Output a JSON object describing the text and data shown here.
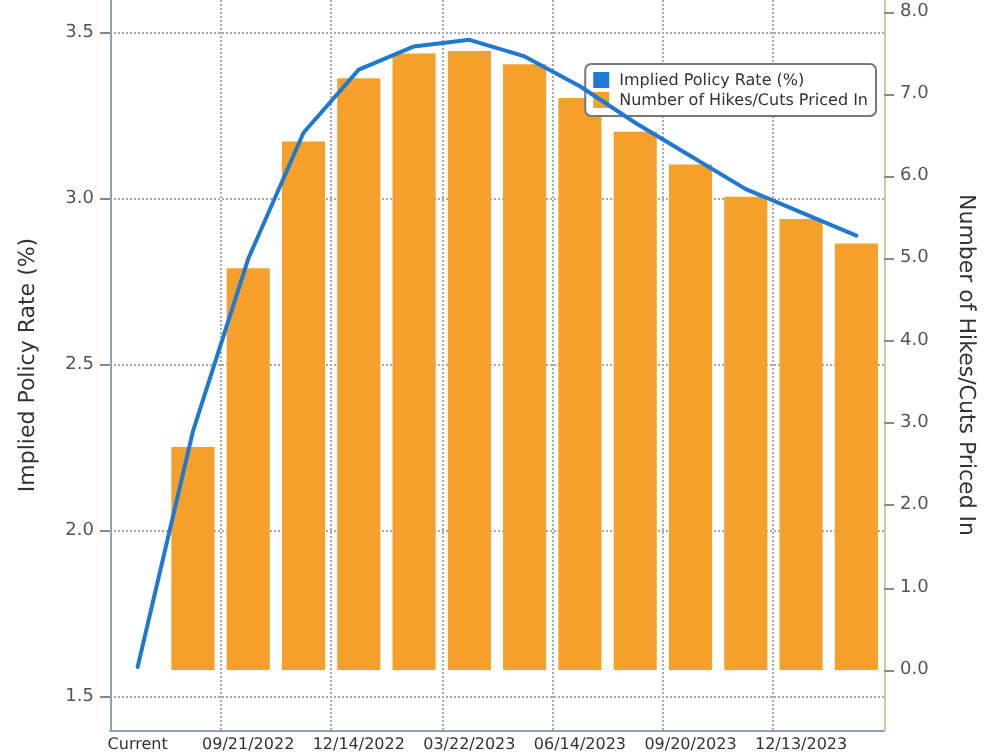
{
  "chart_data": {
    "type": "bar",
    "categories": [
      "Current",
      null,
      "09/21/2022",
      null,
      "12/14/2022",
      null,
      "03/22/2023",
      null,
      "06/14/2023",
      null,
      "09/20/2023",
      null,
      "12/13/2023",
      null
    ],
    "ylabel": "Implied Policy Rate (%)",
    "y2label": "Number of Hikes/Cuts Priced In",
    "series": [
      {
        "name": "Implied Policy Rate (%)",
        "type": "line",
        "color": "#1f78d1",
        "values": [
          1.59,
          2.3,
          2.82,
          3.2,
          3.39,
          3.46,
          3.48,
          3.43,
          3.34,
          3.23,
          3.13,
          3.03,
          2.96,
          2.89
        ]
      },
      {
        "name": "Number of Hikes/Cuts Priced In",
        "axis": "y2",
        "color": "#f5a02a",
        "values": [
          0,
          2.71,
          4.88,
          6.42,
          7.19,
          7.49,
          7.52,
          7.36,
          6.95,
          6.54,
          6.14,
          5.75,
          5.48,
          5.18
        ]
      }
    ],
    "ylim": [
      1.4,
      3.6
    ],
    "yticks": [
      {
        "value": 1.5,
        "label": "1.5"
      },
      {
        "value": 2,
        "label": "2.0"
      },
      {
        "value": 2.5,
        "label": "2.5"
      },
      {
        "value": 3,
        "label": "3.0"
      },
      {
        "value": 3.5,
        "label": "3.5"
      }
    ],
    "y2lim": [
      -0.73,
      8.14
    ],
    "y2ticks": [
      {
        "value": 0,
        "label": "0.0"
      },
      {
        "value": 1,
        "label": "1.0"
      },
      {
        "value": 2,
        "label": "2.0"
      },
      {
        "value": 3,
        "label": "3.0"
      },
      {
        "value": 4,
        "label": "4.0"
      },
      {
        "value": 5,
        "label": "5.0"
      },
      {
        "value": 6,
        "label": "6.0"
      },
      {
        "value": 7,
        "label": "7.0"
      },
      {
        "value": 8,
        "label": "8.0"
      }
    ],
    "grid": true,
    "legend": "top right",
    "marker": "none",
    "line_style": "solid"
  }
}
